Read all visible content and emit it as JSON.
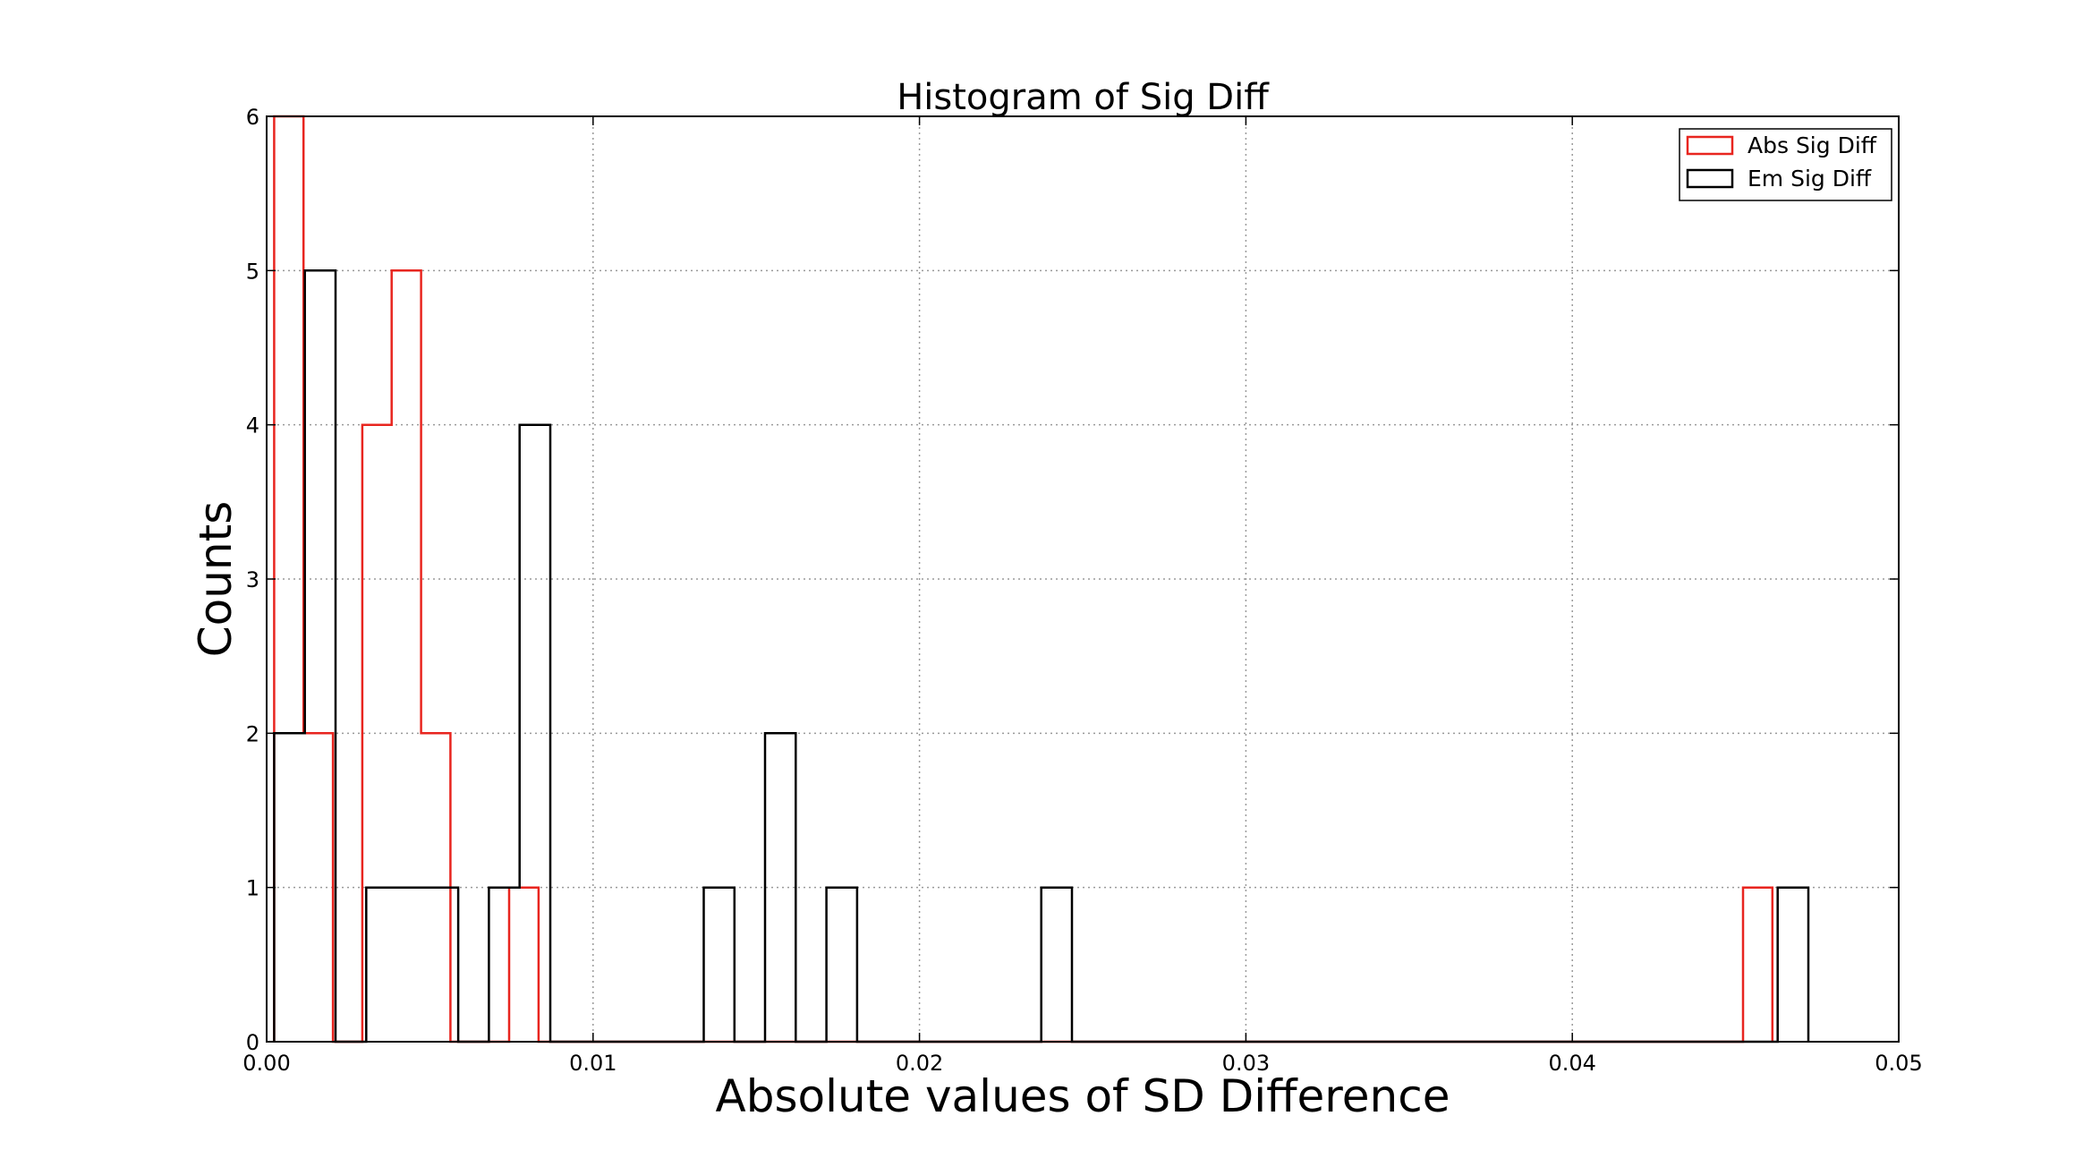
{
  "chart_data": {
    "type": "histogram",
    "title": "Histogram of Sig Diff",
    "xlabel": "Absolute values of SD Difference",
    "ylabel": "Counts",
    "xlim": [
      0,
      0.05
    ],
    "ylim": [
      0,
      6
    ],
    "xticks": [
      "0.00",
      "0.01",
      "0.02",
      "0.03",
      "0.04",
      "0.05"
    ],
    "yticks": [
      "0",
      "1",
      "2",
      "3",
      "4",
      "5",
      "6"
    ],
    "grid": true,
    "legend_position": "top-right",
    "series": [
      {
        "name": "Abs Sig Diff",
        "color": "#e8251f",
        "edges": [
          0.00023,
          0.00113,
          0.00203,
          0.00293,
          0.00383,
          0.00473,
          0.00563,
          0.00653,
          0.00743,
          0.00833,
          0.01373,
          0.01553,
          0.01643,
          0.01823,
          0.02363,
          0.02453,
          0.04523,
          0.04613
        ],
        "counts": [
          6,
          2,
          0,
          4,
          5,
          2,
          0,
          0,
          1,
          0,
          0,
          0,
          0,
          0,
          0,
          0,
          1
        ]
      },
      {
        "name": "Em Sig Diff",
        "color": "#000000",
        "edges": [
          0.00023,
          0.00117,
          0.00211,
          0.00305,
          0.00587,
          0.00681,
          0.00775,
          0.00869,
          0.01339,
          0.01433,
          0.01527,
          0.01621,
          0.01715,
          0.01809,
          0.02373,
          0.02467,
          0.04629,
          0.04723
        ],
        "counts": [
          2,
          5,
          0,
          1,
          0,
          1,
          4,
          0,
          1,
          0,
          2,
          0,
          1,
          0,
          1,
          0,
          1
        ]
      }
    ]
  }
}
